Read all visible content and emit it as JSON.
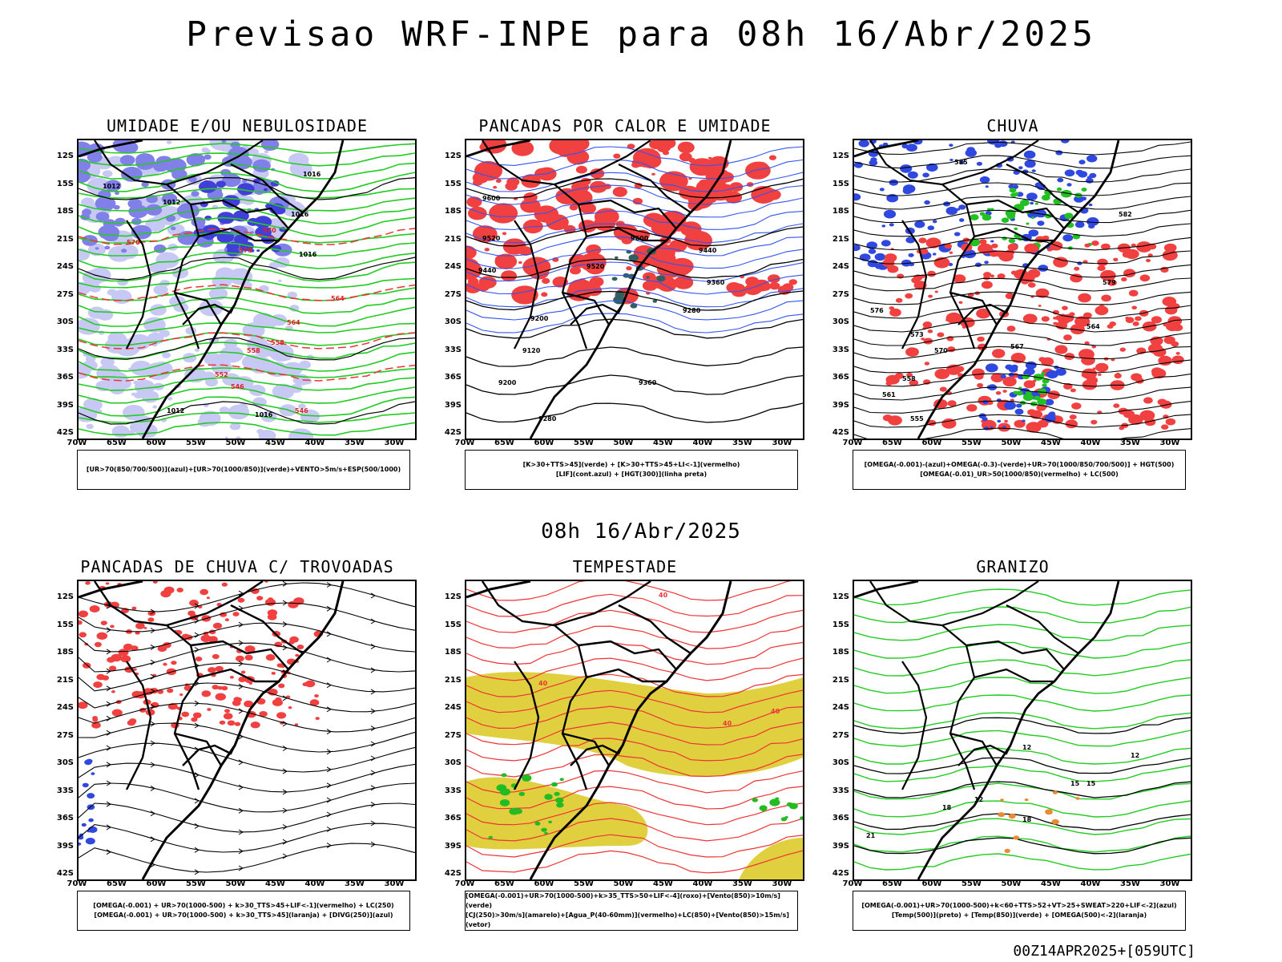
{
  "page": {
    "title": "Previsao WRF-INPE  para 08h 16/Abr/2025",
    "mid_title": "08h 16/Abr/2025",
    "footer": "00Z14APR2025+[059UTC]"
  },
  "axes": {
    "lat_labels": [
      "12S",
      "15S",
      "18S",
      "21S",
      "24S",
      "27S",
      "30S",
      "33S",
      "36S",
      "39S",
      "42S"
    ],
    "lon_labels": [
      "70W",
      "65W",
      "60W",
      "55W",
      "50W",
      "45W",
      "40W",
      "35W",
      "30W"
    ]
  },
  "panels": [
    {
      "title": "UMIDADE E/OU NEBULOSIDADE",
      "legend": [
        "[UR>70(850/700/500)](azul)+[UR>70(1000/850)](verde)+VENTO>5m/s+ESP(500/1000)"
      ],
      "labels": [
        "1012",
        "1012",
        "1016",
        "1016",
        "1016",
        "570",
        "570",
        "570",
        "564",
        "564",
        "558",
        "558",
        "552",
        "546",
        "546",
        "1012",
        "1016"
      ]
    },
    {
      "title": "PANCADAS POR CALOR E UMIDADE",
      "legend": [
        "[K>30+TTS>45](verde) + [K>30+TTS>45+LI<-1](vermelho)",
        "[LIF](cont.azul) + [HGT(300)](linha preta)"
      ],
      "labels": [
        "9600",
        "9520",
        "9440",
        "9600",
        "9520",
        "9440",
        "9360",
        "9280",
        "9200",
        "9120",
        "9200",
        "9280",
        "9360"
      ]
    },
    {
      "title": "CHUVA",
      "legend": [
        "[OMEGA(-0.001)-(azul)+OMEGA(-0.3)-(verde)+UR>70(1000/850/700/500)] + HGT(500)",
        "[OMEGA(-0.01)_UR>50(1000/850)(vermelho) + LC(500)"
      ],
      "labels": [
        "585",
        "582",
        "579",
        "576",
        "573",
        "570",
        "567",
        "564",
        "561",
        "558",
        "555"
      ]
    },
    {
      "title": "PANCADAS DE CHUVA C/ TROVOADAS",
      "legend": [
        "[OMEGA(-0.001) + UR>70(1000-500) + k>30_TTS>45+LIF<-1](vermelho) + LC(250)",
        "[OMEGA(-0.001) + UR>70(1000-500) + k>30_TTS>45](laranja) + [DIVG(250)](azul)"
      ],
      "labels": []
    },
    {
      "title": "TEMPESTADE",
      "legend": [
        "[OMEGA(-0.001)+UR>70(1000-500)+k>35_TTS>50+LIF<-4](roxo)+[Vento(850)>10m/s](verde)",
        "[CJ(250)>30m/s](amarelo)+[Agua_P(40-60mm)](vermelho)+LC(850)+[Vento(850)>15m/s](vetor)"
      ],
      "labels": [
        "40",
        "40",
        "40",
        "40"
      ]
    },
    {
      "title": "GRANIZO",
      "legend": [
        "[OMEGA(-0.001)+UR>70(1000-500)+k<60+TTS>52+VT>25+SWEAT>220+LIF<-2](azul)",
        "[Temp(500)](preto) + [Temp(850)](verde) + [OMEGA(500)<-2](laranja)"
      ],
      "labels": [
        "12",
        "12",
        "15",
        "18",
        "18",
        "21",
        "12",
        "15"
      ]
    }
  ]
}
